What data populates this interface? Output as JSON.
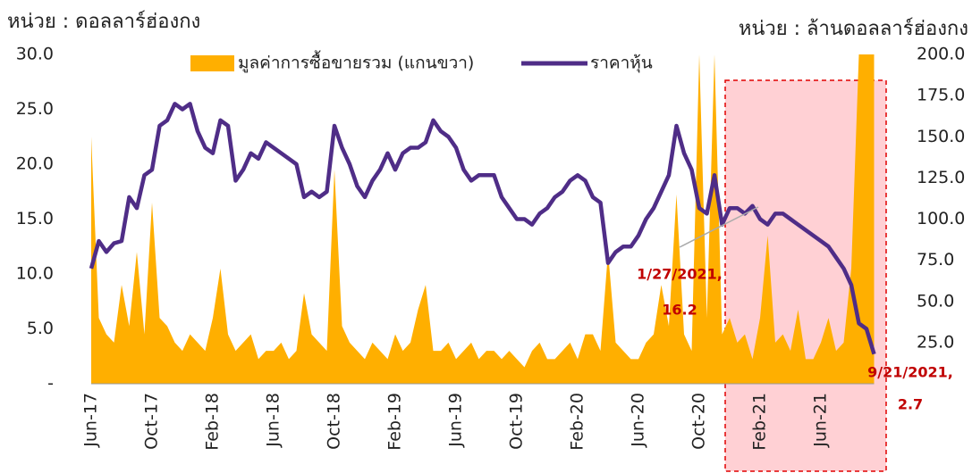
{
  "chart_data": {
    "type": "line",
    "left_unit": "หน่วย : ดอลลาร์ฮ่องกง",
    "right_unit": "หน่วย : ล้านดอลลาร์ฮ่องกง",
    "categories": [
      "Jun-17",
      null,
      null,
      null,
      null,
      null,
      null,
      null,
      "Oct-17",
      null,
      null,
      null,
      null,
      null,
      null,
      null,
      "Feb-18",
      null,
      null,
      null,
      null,
      null,
      null,
      null,
      "Jun-18",
      null,
      null,
      null,
      null,
      null,
      null,
      null,
      "Oct-18",
      null,
      null,
      null,
      null,
      null,
      null,
      null,
      "Feb-19",
      null,
      null,
      null,
      null,
      null,
      null,
      null,
      "Jun-19",
      null,
      null,
      null,
      null,
      null,
      null,
      null,
      "Oct-19",
      null,
      null,
      null,
      null,
      null,
      null,
      null,
      "Feb-20",
      null,
      null,
      null,
      null,
      null,
      null,
      null,
      "Jun-20",
      null,
      null,
      null,
      null,
      null,
      null,
      null,
      "Oct-20",
      null,
      null,
      null,
      null,
      null,
      null,
      null,
      "Feb-21",
      null,
      null,
      null,
      null,
      null,
      null,
      null,
      "Jun-21",
      null,
      null,
      null,
      null,
      null,
      null,
      null
    ],
    "series": [
      {
        "name": "มูลค่าการซื้อขายรวม (แกนขวา)",
        "color": "#ffaf00",
        "kind": "area",
        "axis": "y2",
        "values": [
          150,
          40,
          30,
          25,
          60,
          35,
          80,
          30,
          110,
          40,
          35,
          25,
          20,
          30,
          25,
          20,
          40,
          70,
          30,
          20,
          25,
          30,
          15,
          20,
          20,
          25,
          15,
          20,
          55,
          30,
          25,
          20,
          130,
          35,
          25,
          20,
          15,
          25,
          20,
          15,
          30,
          20,
          25,
          45,
          60,
          20,
          20,
          25,
          15,
          20,
          25,
          15,
          20,
          20,
          15,
          20,
          15,
          10,
          20,
          25,
          15,
          15,
          20,
          25,
          15,
          30,
          30,
          20,
          80,
          25,
          20,
          15,
          15,
          25,
          30,
          60,
          35,
          115,
          30,
          20,
          200,
          40,
          200,
          30,
          40,
          25,
          30,
          15,
          40,
          90,
          25,
          30,
          20,
          45,
          15,
          15,
          25,
          40,
          20,
          25,
          70,
          200,
          200,
          200
        ]
      },
      {
        "name": "ราคาหุ้น",
        "color": "#4f2d87",
        "kind": "line",
        "values": [
          10.5,
          13,
          12,
          12.8,
          13,
          17,
          16,
          19,
          19.5,
          23.5,
          24,
          25.5,
          25,
          25.5,
          23,
          21.5,
          21,
          24,
          23.5,
          18.5,
          19.5,
          21,
          20.5,
          22,
          21.5,
          21,
          20.5,
          20,
          17,
          17.5,
          17,
          17.5,
          23.5,
          21.5,
          20,
          18,
          17,
          18.5,
          19.5,
          21,
          19.5,
          21,
          21.5,
          21.5,
          22,
          24,
          23,
          22.5,
          21.5,
          19.5,
          18.5,
          19,
          19,
          19,
          17,
          16,
          15,
          15,
          14.5,
          15.5,
          16,
          17,
          17.5,
          18.5,
          19,
          18.5,
          17,
          16.5,
          11,
          12,
          12.5,
          12.5,
          13.5,
          15,
          16,
          17.5,
          19,
          23.5,
          21,
          19.5,
          16,
          15.5,
          19,
          14.5,
          16,
          16,
          15.5,
          16.2,
          15,
          14.5,
          15.5,
          15.5,
          15,
          14.5,
          14,
          13.5,
          13,
          12.5,
          11.5,
          10.5,
          9,
          5.5,
          5,
          2.7
        ]
      }
    ],
    "ylim": [
      0,
      30
    ],
    "yticks": [
      {
        "value": 0,
        "label": "-"
      },
      {
        "value": 5,
        "label": "5.0"
      },
      {
        "value": 10,
        "label": "10.0"
      },
      {
        "value": 15,
        "label": "15.0"
      },
      {
        "value": 20,
        "label": "20.0"
      },
      {
        "value": 25,
        "label": "25.0"
      },
      {
        "value": 30,
        "label": "30.0"
      }
    ],
    "y2lim": [
      0,
      200
    ],
    "y2ticks": [
      {
        "value": 25,
        "label": "25.0"
      },
      {
        "value": 50,
        "label": "50.0"
      },
      {
        "value": 75,
        "label": "75.0"
      },
      {
        "value": 100,
        "label": "100.0"
      },
      {
        "value": 125,
        "label": "125.0"
      },
      {
        "value": 150,
        "label": "150.0"
      },
      {
        "value": 175,
        "label": "175.0"
      },
      {
        "value": 200,
        "label": "200.0"
      }
    ],
    "annotations": [
      {
        "label": "1/27/2021,",
        "value": 16.2
      },
      {
        "label": "9/21/2021,",
        "value": 2.7
      }
    ]
  }
}
